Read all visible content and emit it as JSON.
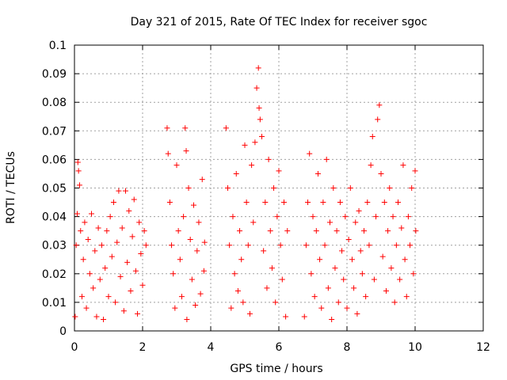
{
  "chart_data": {
    "type": "scatter",
    "title": "Day 321 of 2015, Rate Of TEC Index for receiver sgoc",
    "xlabel": "GPS time / hours",
    "ylabel": "ROTI / TECUs",
    "xlim": [
      0,
      12
    ],
    "ylim": [
      0,
      0.1
    ],
    "x_ticks": [
      0,
      2,
      4,
      6,
      8,
      10,
      12
    ],
    "y_ticks": [
      0,
      0.01,
      0.02,
      0.03,
      0.04,
      0.05,
      0.06,
      0.07,
      0.08,
      0.09,
      0.1
    ],
    "x_tick_labels": [
      "0",
      "2",
      "4",
      "6",
      "8",
      "10",
      "12"
    ],
    "y_tick_labels": [
      "0",
      "0.01",
      "0.02",
      "0.03",
      "0.04",
      "0.05",
      "0.06",
      "0.07",
      "0.08",
      "0.09",
      "0.1"
    ],
    "grid": true,
    "marker": "+",
    "color": "#ff0000",
    "series": [
      {
        "name": "ROTI",
        "points": [
          [
            0.02,
            0.005
          ],
          [
            0.05,
            0.03
          ],
          [
            0.08,
            0.041
          ],
          [
            0.1,
            0.059
          ],
          [
            0.12,
            0.056
          ],
          [
            0.15,
            0.051
          ],
          [
            0.18,
            0.035
          ],
          [
            0.22,
            0.012
          ],
          [
            0.26,
            0.025
          ],
          [
            0.3,
            0.038
          ],
          [
            0.35,
            0.008
          ],
          [
            0.4,
            0.032
          ],
          [
            0.45,
            0.02
          ],
          [
            0.5,
            0.041
          ],
          [
            0.55,
            0.015
          ],
          [
            0.6,
            0.028
          ],
          [
            0.65,
            0.005
          ],
          [
            0.7,
            0.036
          ],
          [
            0.75,
            0.018
          ],
          [
            0.8,
            0.03
          ],
          [
            0.85,
            0.004
          ],
          [
            0.9,
            0.022
          ],
          [
            0.95,
            0.035
          ],
          [
            1.0,
            0.012
          ],
          [
            1.05,
            0.04
          ],
          [
            1.1,
            0.026
          ],
          [
            1.15,
            0.045
          ],
          [
            1.2,
            0.01
          ],
          [
            1.25,
            0.031
          ],
          [
            1.3,
            0.049
          ],
          [
            1.35,
            0.019
          ],
          [
            1.4,
            0.036
          ],
          [
            1.45,
            0.007
          ],
          [
            1.5,
            0.049
          ],
          [
            1.55,
            0.024
          ],
          [
            1.6,
            0.042
          ],
          [
            1.65,
            0.014
          ],
          [
            1.7,
            0.033
          ],
          [
            1.75,
            0.046
          ],
          [
            1.8,
            0.021
          ],
          [
            1.85,
            0.006
          ],
          [
            1.9,
            0.038
          ],
          [
            1.95,
            0.027
          ],
          [
            2.0,
            0.016
          ],
          [
            2.05,
            0.035
          ],
          [
            2.1,
            0.03
          ],
          [
            2.72,
            0.071
          ],
          [
            2.75,
            0.062
          ],
          [
            2.8,
            0.045
          ],
          [
            2.85,
            0.03
          ],
          [
            2.9,
            0.02
          ],
          [
            2.95,
            0.008
          ],
          [
            3.0,
            0.058
          ],
          [
            3.05,
            0.035
          ],
          [
            3.1,
            0.025
          ],
          [
            3.15,
            0.012
          ],
          [
            3.2,
            0.04
          ],
          [
            3.25,
            0.071
          ],
          [
            3.28,
            0.063
          ],
          [
            3.3,
            0.004
          ],
          [
            3.35,
            0.05
          ],
          [
            3.4,
            0.032
          ],
          [
            3.45,
            0.018
          ],
          [
            3.5,
            0.044
          ],
          [
            3.55,
            0.009
          ],
          [
            3.6,
            0.028
          ],
          [
            3.65,
            0.038
          ],
          [
            3.7,
            0.013
          ],
          [
            3.75,
            0.053
          ],
          [
            3.8,
            0.021
          ],
          [
            3.82,
            0.031
          ],
          [
            4.45,
            0.071
          ],
          [
            4.5,
            0.05
          ],
          [
            4.55,
            0.03
          ],
          [
            4.6,
            0.008
          ],
          [
            4.65,
            0.04
          ],
          [
            4.7,
            0.02
          ],
          [
            4.75,
            0.055
          ],
          [
            4.8,
            0.014
          ],
          [
            4.85,
            0.035
          ],
          [
            4.9,
            0.025
          ],
          [
            4.95,
            0.01
          ],
          [
            5.0,
            0.065
          ],
          [
            5.05,
            0.045
          ],
          [
            5.1,
            0.03
          ],
          [
            5.15,
            0.006
          ],
          [
            5.2,
            0.058
          ],
          [
            5.25,
            0.038
          ],
          [
            5.3,
            0.066
          ],
          [
            5.35,
            0.085
          ],
          [
            5.4,
            0.092
          ],
          [
            5.42,
            0.078
          ],
          [
            5.45,
            0.074
          ],
          [
            5.5,
            0.068
          ],
          [
            5.55,
            0.028
          ],
          [
            5.6,
            0.045
          ],
          [
            5.65,
            0.015
          ],
          [
            5.7,
            0.06
          ],
          [
            5.75,
            0.035
          ],
          [
            5.8,
            0.022
          ],
          [
            5.85,
            0.05
          ],
          [
            5.9,
            0.01
          ],
          [
            5.95,
            0.04
          ],
          [
            6.0,
            0.056
          ],
          [
            6.05,
            0.03
          ],
          [
            6.1,
            0.018
          ],
          [
            6.15,
            0.045
          ],
          [
            6.2,
            0.005
          ],
          [
            6.25,
            0.035
          ],
          [
            6.75,
            0.005
          ],
          [
            6.8,
            0.03
          ],
          [
            6.85,
            0.045
          ],
          [
            6.9,
            0.062
          ],
          [
            6.95,
            0.02
          ],
          [
            7.0,
            0.04
          ],
          [
            7.05,
            0.012
          ],
          [
            7.1,
            0.035
          ],
          [
            7.15,
            0.055
          ],
          [
            7.2,
            0.025
          ],
          [
            7.25,
            0.008
          ],
          [
            7.3,
            0.045
          ],
          [
            7.35,
            0.03
          ],
          [
            7.4,
            0.06
          ],
          [
            7.45,
            0.015
          ],
          [
            7.5,
            0.038
          ],
          [
            7.55,
            0.004
          ],
          [
            7.6,
            0.05
          ],
          [
            7.65,
            0.022
          ],
          [
            7.7,
            0.035
          ],
          [
            7.75,
            0.01
          ],
          [
            7.8,
            0.045
          ],
          [
            7.85,
            0.028
          ],
          [
            7.9,
            0.018
          ],
          [
            7.95,
            0.04
          ],
          [
            8.0,
            0.008
          ],
          [
            8.05,
            0.032
          ],
          [
            8.1,
            0.05
          ],
          [
            8.15,
            0.025
          ],
          [
            8.2,
            0.015
          ],
          [
            8.25,
            0.038
          ],
          [
            8.3,
            0.006
          ],
          [
            8.35,
            0.042
          ],
          [
            8.4,
            0.028
          ],
          [
            8.45,
            0.02
          ],
          [
            8.5,
            0.035
          ],
          [
            8.55,
            0.012
          ],
          [
            8.6,
            0.045
          ],
          [
            8.65,
            0.03
          ],
          [
            8.7,
            0.058
          ],
          [
            8.75,
            0.068
          ],
          [
            8.8,
            0.018
          ],
          [
            8.85,
            0.04
          ],
          [
            8.9,
            0.074
          ],
          [
            8.95,
            0.079
          ],
          [
            9.0,
            0.055
          ],
          [
            9.05,
            0.026
          ],
          [
            9.1,
            0.045
          ],
          [
            9.15,
            0.014
          ],
          [
            9.2,
            0.035
          ],
          [
            9.25,
            0.05
          ],
          [
            9.3,
            0.022
          ],
          [
            9.35,
            0.04
          ],
          [
            9.4,
            0.01
          ],
          [
            9.45,
            0.03
          ],
          [
            9.5,
            0.045
          ],
          [
            9.55,
            0.018
          ],
          [
            9.6,
            0.036
          ],
          [
            9.65,
            0.058
          ],
          [
            9.7,
            0.025
          ],
          [
            9.75,
            0.012
          ],
          [
            9.8,
            0.04
          ],
          [
            9.85,
            0.03
          ],
          [
            9.9,
            0.05
          ],
          [
            9.95,
            0.02
          ],
          [
            10.0,
            0.056
          ],
          [
            10.02,
            0.035
          ]
        ]
      }
    ]
  }
}
